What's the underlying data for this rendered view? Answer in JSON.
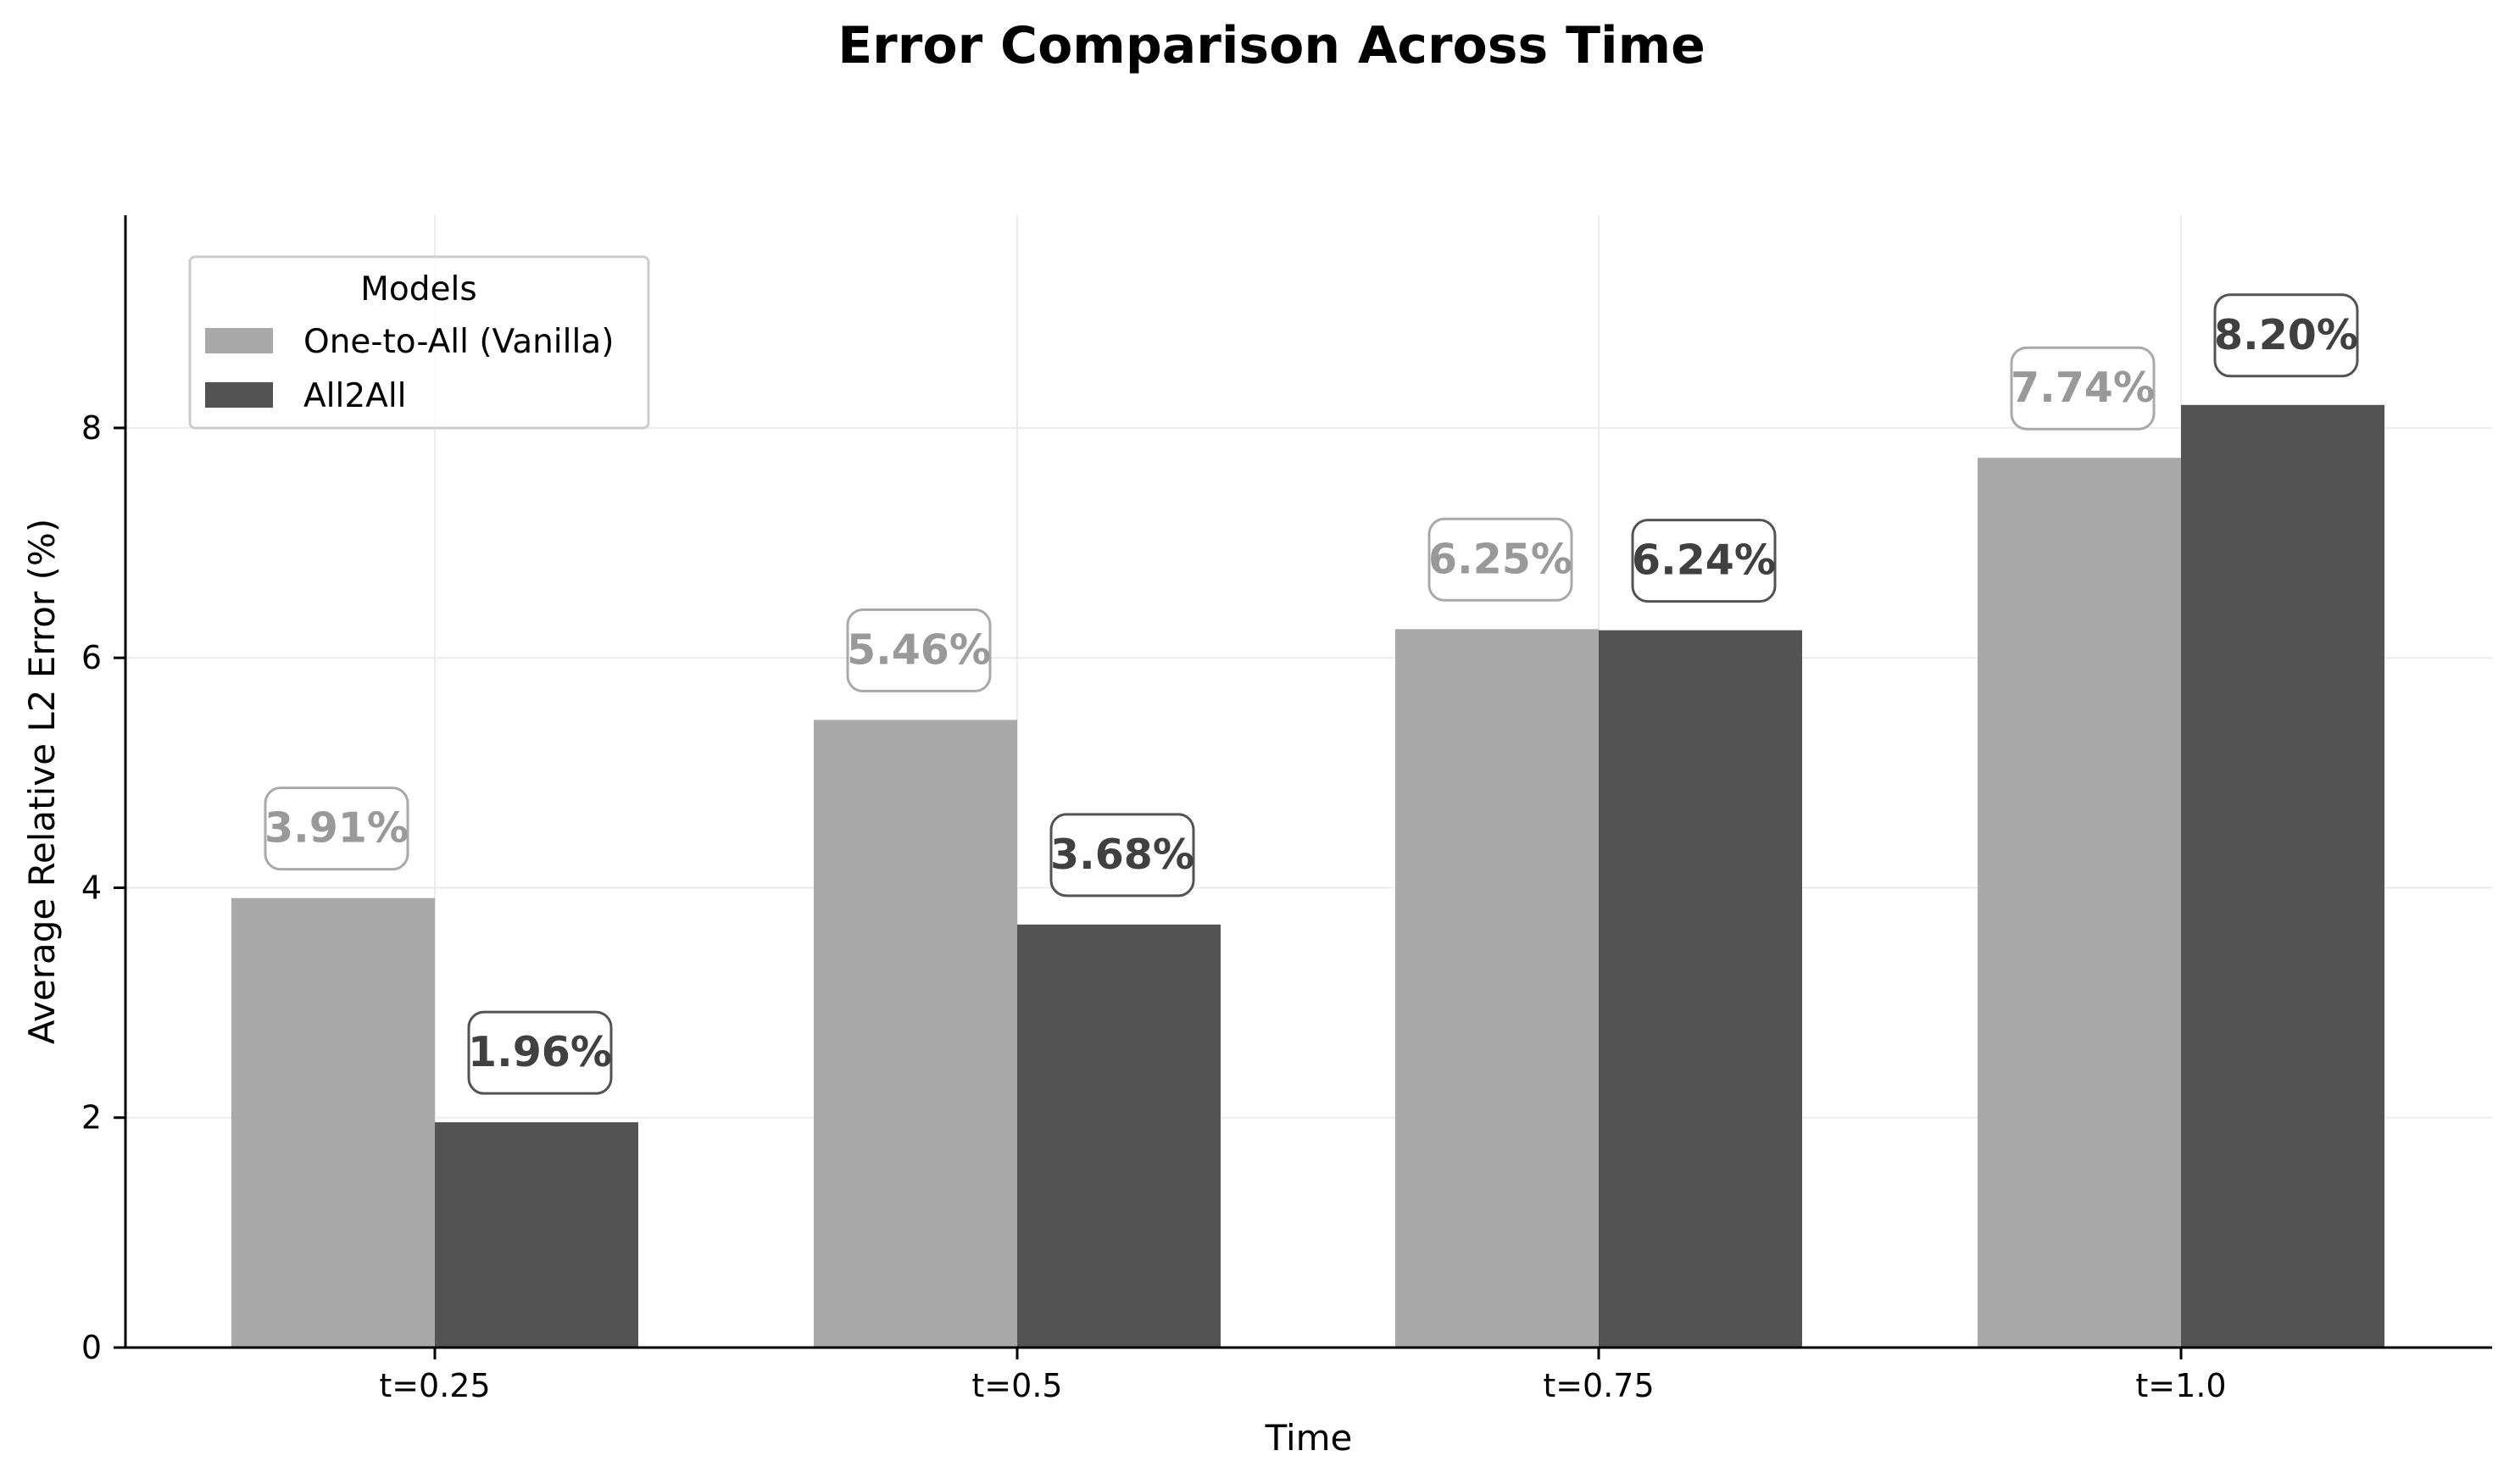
{
  "chart_data": {
    "type": "bar",
    "title": "Error Comparison Across Time",
    "xlabel": "Time",
    "ylabel": "Average Relative L2 Error (%)",
    "categories": [
      "t=0.25",
      "t=0.5",
      "t=0.75",
      "t=1.0"
    ],
    "ylim": [
      0,
      9.85
    ],
    "yticks": [
      0,
      2,
      4,
      6,
      8
    ],
    "grid": true,
    "legend": {
      "title": "Models",
      "placement": "upper-left"
    },
    "series": [
      {
        "name": "One-to-All (Vanilla)",
        "values": [
          3.91,
          5.46,
          6.25,
          7.74
        ],
        "labels": [
          "3.91%",
          "5.46%",
          "6.25%",
          "7.74%"
        ],
        "color": "#a9a9a9",
        "label_text_color": "#999999",
        "label_border_color": "#a9a9a9"
      },
      {
        "name": "All2All",
        "values": [
          1.96,
          3.68,
          6.24,
          8.2
        ],
        "labels": [
          "1.96%",
          "3.68%",
          "6.24%",
          "8.20%"
        ],
        "color": "#535353",
        "label_text_color": "#404040",
        "label_border_color": "#535353"
      }
    ]
  }
}
